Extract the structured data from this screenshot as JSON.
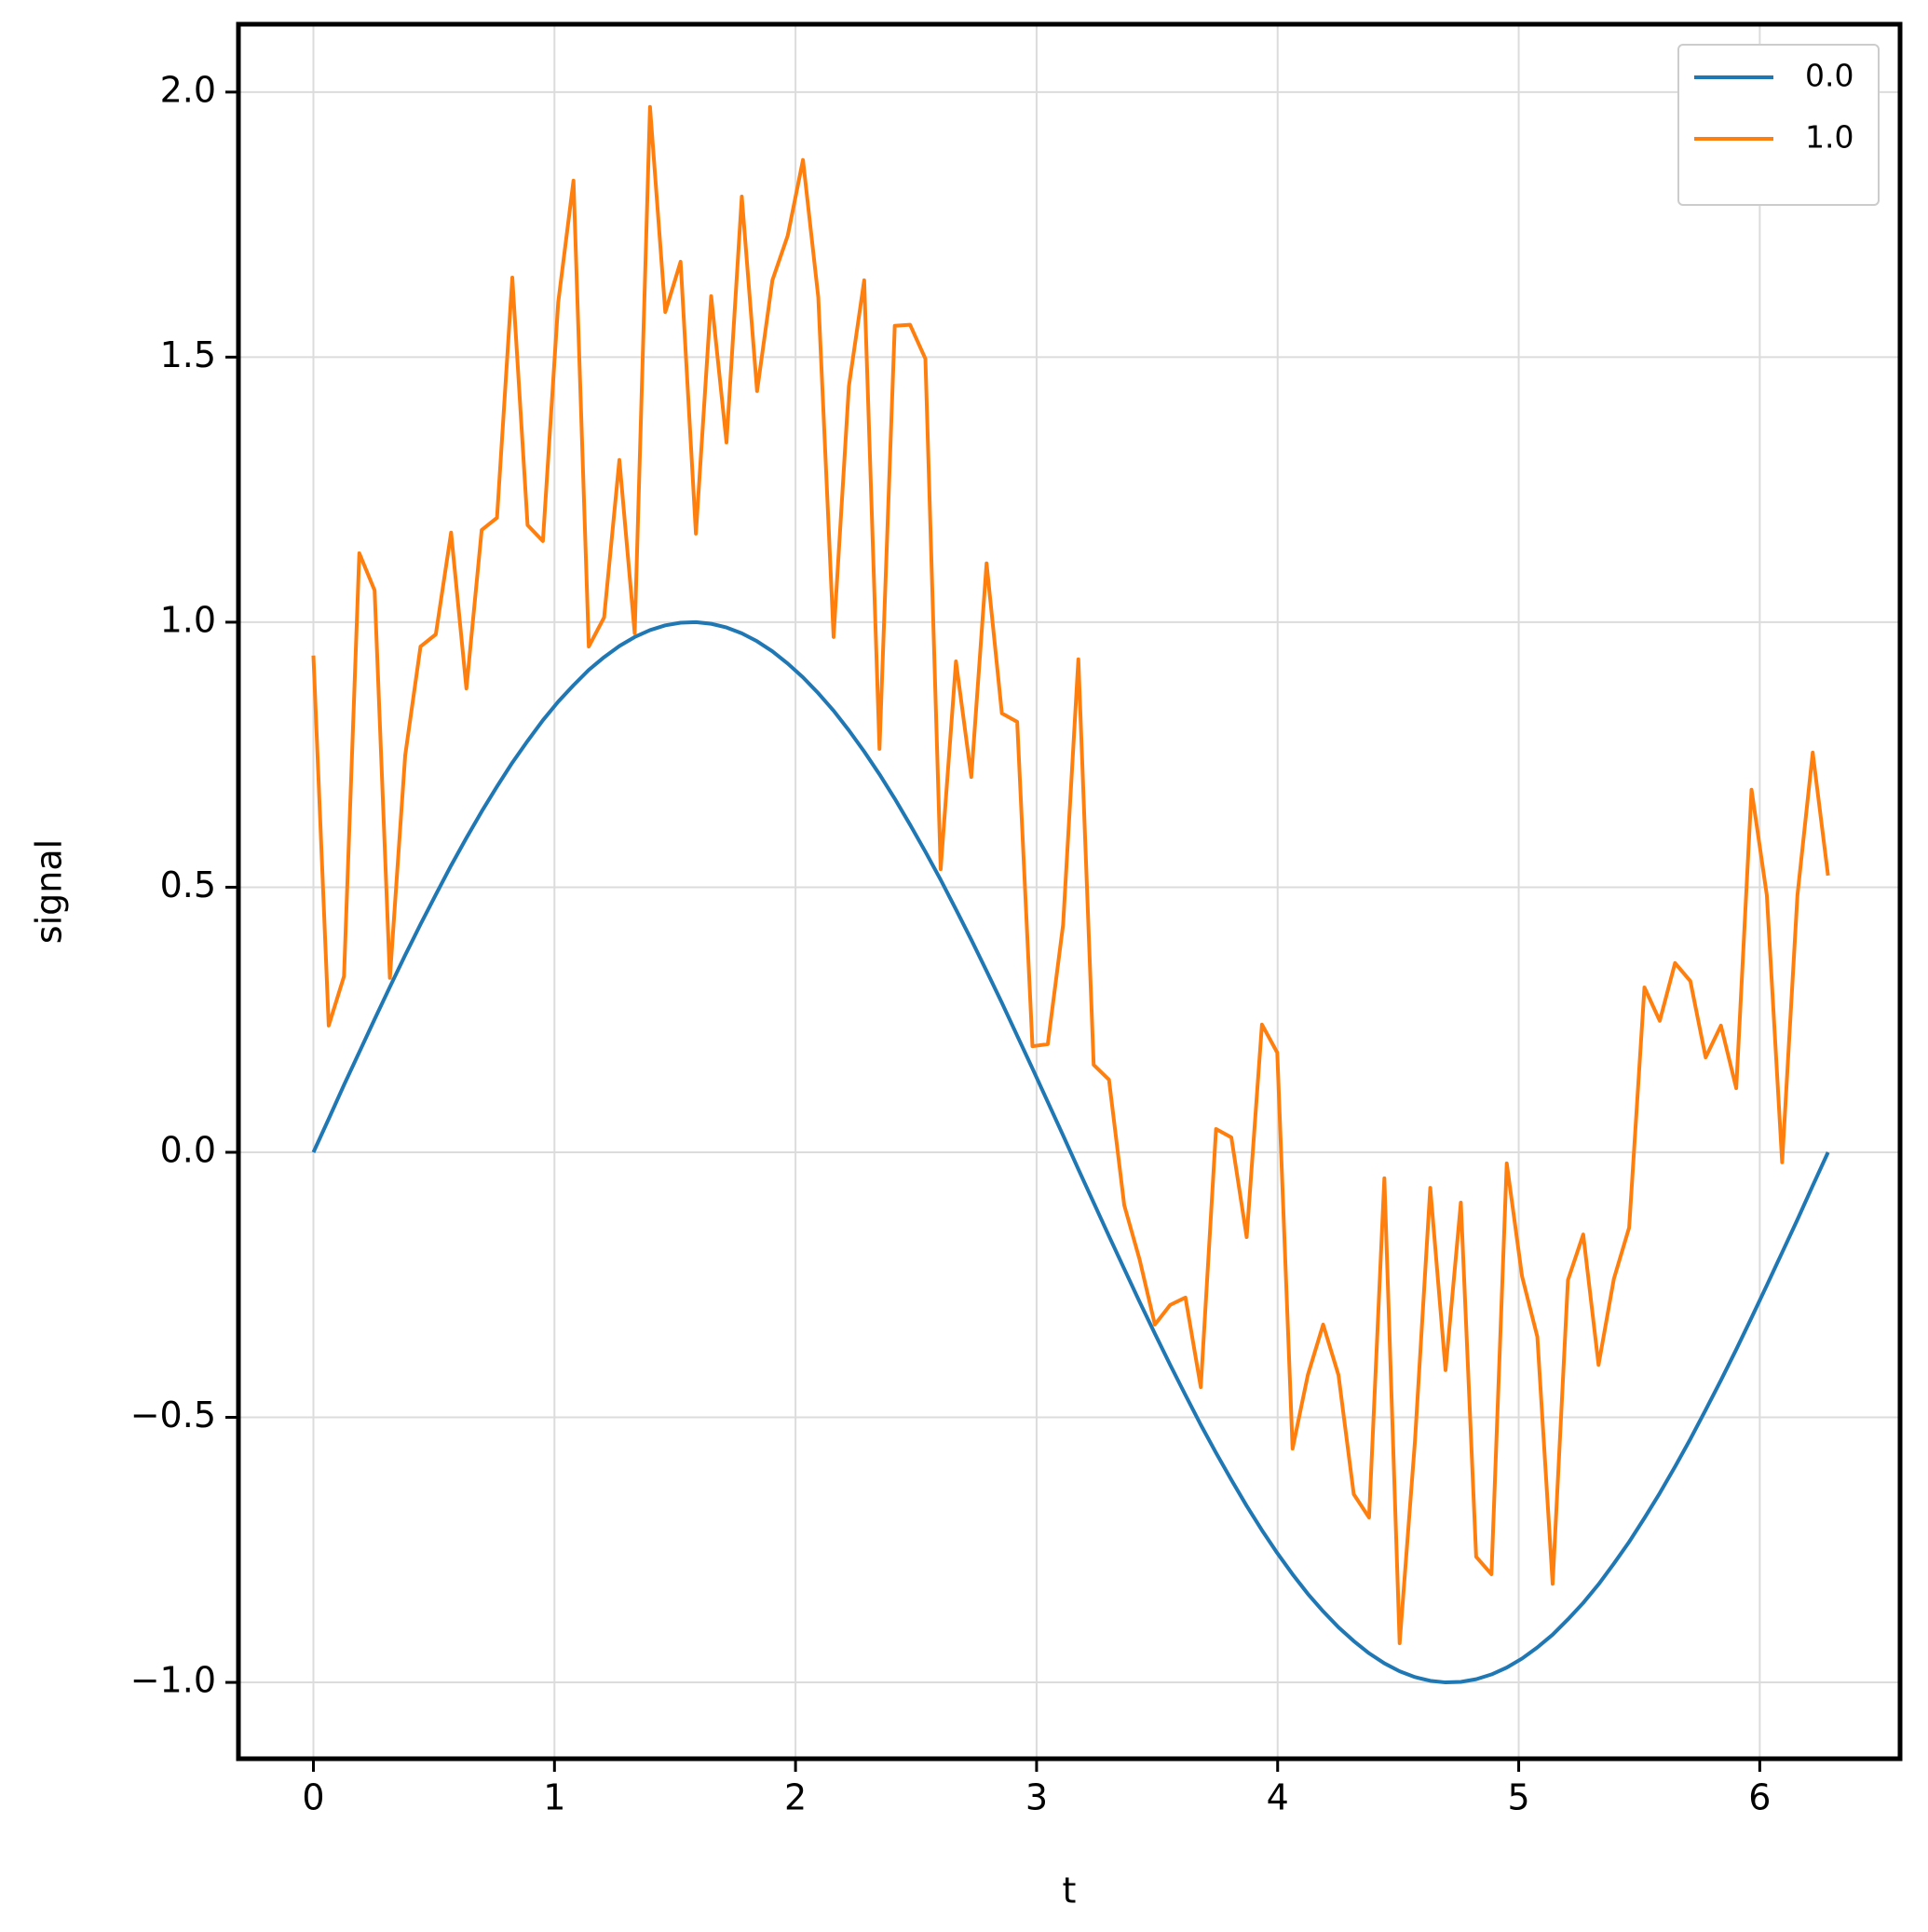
{
  "chart_data": {
    "type": "line",
    "xlabel": "t",
    "ylabel": "signal",
    "x": [
      0,
      0.0635,
      0.1269,
      0.1904,
      0.2539,
      0.3173,
      0.3808,
      0.4443,
      0.5077,
      0.5712,
      0.6347,
      0.6981,
      0.7616,
      0.8251,
      0.8885,
      0.952,
      1.0155,
      1.0789,
      1.1424,
      1.2059,
      1.2693,
      1.3328,
      1.3963,
      1.4597,
      1.5232,
      1.5867,
      1.6501,
      1.7136,
      1.7771,
      1.8405,
      1.904,
      1.9675,
      2.0309,
      2.0944,
      2.1579,
      2.2213,
      2.2848,
      2.3483,
      2.4117,
      2.4752,
      2.5387,
      2.6021,
      2.6656,
      2.7291,
      2.7925,
      2.856,
      2.9195,
      2.9829,
      3.0464,
      3.1099,
      3.1733,
      3.2368,
      3.3003,
      3.3637,
      3.4272,
      3.4907,
      3.5541,
      3.6176,
      3.6811,
      3.7445,
      3.808,
      3.8715,
      3.9349,
      3.9984,
      4.0619,
      4.1253,
      4.1888,
      4.2523,
      4.3157,
      4.3792,
      4.4427,
      4.5061,
      4.5696,
      4.6331,
      4.6965,
      4.76,
      4.8235,
      4.8869,
      4.9504,
      5.0139,
      5.0773,
      5.1408,
      5.2043,
      5.2677,
      5.3312,
      5.3947,
      5.4581,
      5.5216,
      5.5851,
      5.6485,
      5.712,
      5.7755,
      5.8389,
      5.9024,
      5.9659,
      6.0293,
      6.0928,
      6.1563,
      6.2197,
      6.2832
    ],
    "series": [
      {
        "name": "0.0",
        "color": "#1f77b4",
        "values": [
          0,
          0.063,
          0.127,
          0.189,
          0.251,
          0.312,
          0.372,
          0.43,
          0.486,
          0.541,
          0.593,
          0.643,
          0.69,
          0.735,
          0.776,
          0.815,
          0.85,
          0.881,
          0.91,
          0.934,
          0.955,
          0.972,
          0.985,
          0.994,
          0.999,
          1.0,
          0.997,
          0.99,
          0.979,
          0.964,
          0.945,
          0.922,
          0.896,
          0.866,
          0.833,
          0.796,
          0.756,
          0.713,
          0.667,
          0.618,
          0.567,
          0.514,
          0.458,
          0.401,
          0.342,
          0.282,
          0.22,
          0.158,
          0.095,
          0.032,
          -0.032,
          -0.095,
          -0.158,
          -0.22,
          -0.282,
          -0.342,
          -0.401,
          -0.458,
          -0.514,
          -0.567,
          -0.618,
          -0.667,
          -0.713,
          -0.756,
          -0.796,
          -0.833,
          -0.866,
          -0.896,
          -0.922,
          -0.945,
          -0.964,
          -0.979,
          -0.99,
          -0.997,
          -1.0,
          -0.999,
          -0.994,
          -0.985,
          -0.972,
          -0.955,
          -0.934,
          -0.91,
          -0.881,
          -0.85,
          -0.815,
          -0.776,
          -0.735,
          -0.69,
          -0.643,
          -0.593,
          -0.541,
          -0.486,
          -0.43,
          -0.372,
          -0.312,
          -0.251,
          -0.189,
          -0.127,
          -0.063,
          0
        ]
      },
      {
        "name": "1.0",
        "color": "#ff7f0e",
        "values": [
          0.937,
          0.239,
          0.332,
          1.13,
          1.06,
          0.329,
          0.749,
          0.954,
          0.977,
          1.169,
          0.875,
          1.174,
          1.197,
          1.65,
          1.183,
          1.153,
          1.603,
          1.833,
          0.954,
          1.009,
          1.306,
          0.979,
          1.972,
          1.585,
          1.68,
          1.167,
          1.615,
          1.339,
          1.803,
          1.436,
          1.645,
          1.729,
          1.872,
          1.613,
          0.972,
          1.445,
          1.645,
          0.761,
          1.559,
          1.561,
          1.497,
          0.534,
          0.926,
          0.708,
          1.111,
          0.828,
          0.812,
          0.2,
          0.204,
          0.429,
          0.93,
          0.165,
          0.137,
          -0.1,
          -0.202,
          -0.325,
          -0.288,
          -0.274,
          -0.443,
          0.044,
          0.028,
          -0.16,
          0.241,
          0.188,
          -0.559,
          -0.42,
          -0.325,
          -0.42,
          -0.645,
          -0.689,
          -0.049,
          -0.926,
          -0.545,
          -0.067,
          -0.411,
          -0.095,
          -0.763,
          -0.796,
          -0.021,
          -0.234,
          -0.348,
          -0.814,
          -0.241,
          -0.155,
          -0.401,
          -0.239,
          -0.142,
          0.311,
          0.248,
          0.357,
          0.323,
          0.179,
          0.239,
          0.121,
          0.684,
          0.485,
          -0.019,
          0.485,
          0.754,
          0.522
        ]
      }
    ],
    "xlim": [
      -0.311,
      6.582
    ],
    "ylim": [
      -1.144,
      2.128
    ],
    "xticks": [
      0,
      1,
      2,
      3,
      4,
      5,
      6
    ],
    "yticks": [
      {
        "value": -1,
        "label": "−1.0"
      },
      {
        "value": -0.5,
        "label": "−0.5"
      },
      {
        "value": 0,
        "label": "0.0"
      },
      0.5,
      {
        "value": 1,
        "label": "1.0"
      },
      1.5,
      {
        "value": 2,
        "label": "2.0"
      }
    ],
    "grid": true,
    "legend": "upper right"
  }
}
